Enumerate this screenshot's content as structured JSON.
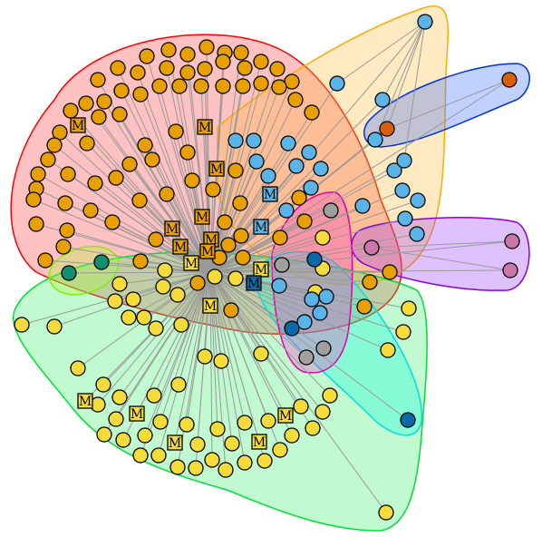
{
  "marker_nodes": [
    {
      "label": "M"
    },
    {
      "label": "M"
    },
    {
      "label": "M"
    },
    {
      "label": "M"
    },
    {
      "label": "M"
    },
    {
      "label": "M"
    },
    {
      "label": "M"
    },
    {
      "label": "M"
    },
    {
      "label": "M"
    },
    {
      "label": "M"
    },
    {
      "label": "M"
    },
    {
      "label": "M"
    },
    {
      "label": "M"
    },
    {
      "label": "M"
    },
    {
      "label": "M"
    },
    {
      "label": "M"
    },
    {
      "label": "M"
    },
    {
      "label": "M"
    },
    {
      "label": "M"
    }
  ]
}
